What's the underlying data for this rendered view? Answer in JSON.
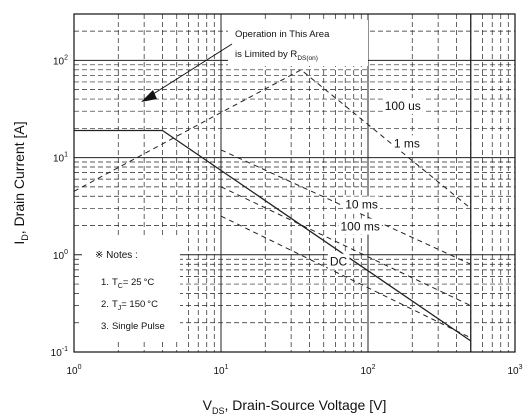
{
  "chart_data": {
    "type": "line",
    "title": "",
    "x_scale": "log",
    "y_scale": "log",
    "xlim": [
      1,
      1000
    ],
    "ylim": [
      0.1,
      300
    ],
    "grid": true,
    "x_ticks": [
      {
        "base": "10",
        "exp": "0",
        "value": 1
      },
      {
        "base": "10",
        "exp": "1",
        "value": 10
      },
      {
        "base": "10",
        "exp": "2",
        "value": 100
      },
      {
        "base": "10",
        "exp": "3",
        "value": 1000
      }
    ],
    "y_ticks": [
      {
        "base": "10",
        "exp": "-1",
        "value": 0.1
      },
      {
        "base": "10",
        "exp": "0",
        "value": 1
      },
      {
        "base": "10",
        "exp": "1",
        "value": 10
      },
      {
        "base": "10",
        "exp": "2",
        "value": 100
      }
    ],
    "xlabel": {
      "main": "V",
      "sub": "DS",
      "rest": ", Drain-Source Voltage [V]"
    },
    "ylabel": {
      "main": "I",
      "sub": "D",
      "rest": ", Drain Current [A]"
    },
    "series": [
      {
        "name": "100 us",
        "style": "dashed",
        "x": [
          1,
          35,
          500
        ],
        "y": [
          4.5,
          80,
          3.0
        ],
        "label_at": [
          130,
          34
        ]
      },
      {
        "name": "1 ms",
        "style": "dashed",
        "x": [
          10,
          500
        ],
        "y": [
          12,
          0.8
        ],
        "label_at": [
          150,
          14
        ]
      },
      {
        "name": "10 ms",
        "style": "dashed",
        "x": [
          10,
          500
        ],
        "y": [
          5,
          0.3
        ],
        "label_at": [
          70,
          3.3
        ]
      },
      {
        "name": "100 ms",
        "style": "dashed",
        "x": [
          10,
          500
        ],
        "y": [
          2.5,
          0.14
        ],
        "label_at": [
          65,
          1.95
        ]
      },
      {
        "name": "DC",
        "style": "solid",
        "x": [
          1,
          4,
          500
        ],
        "y": [
          19,
          19,
          0.13
        ],
        "label_at": [
          55,
          0.85
        ]
      }
    ],
    "limit_line": {
      "style": "solid",
      "x": [
        1,
        500
      ],
      "y": [
        19,
        0.13
      ]
    },
    "vertical_limit": {
      "style": "solid",
      "x": 500,
      "y": [
        0.1,
        300
      ]
    },
    "notes": {
      "title": "※ Notes :",
      "items": [
        {
          "num": "1.",
          "symbol": "T",
          "sub": "C",
          "value": "= 25",
          "unit": "°C"
        },
        {
          "num": "2.",
          "symbol": "T",
          "sub": "J",
          "value": "= 150",
          "unit": "°C"
        },
        {
          "num": "3.",
          "symbol": "",
          "sub": "",
          "value": "Single Pulse",
          "unit": ""
        }
      ]
    },
    "annotation": {
      "line1": "Operation in This Area",
      "line2": "is Limited by R",
      "sub": "DS(on)"
    }
  }
}
